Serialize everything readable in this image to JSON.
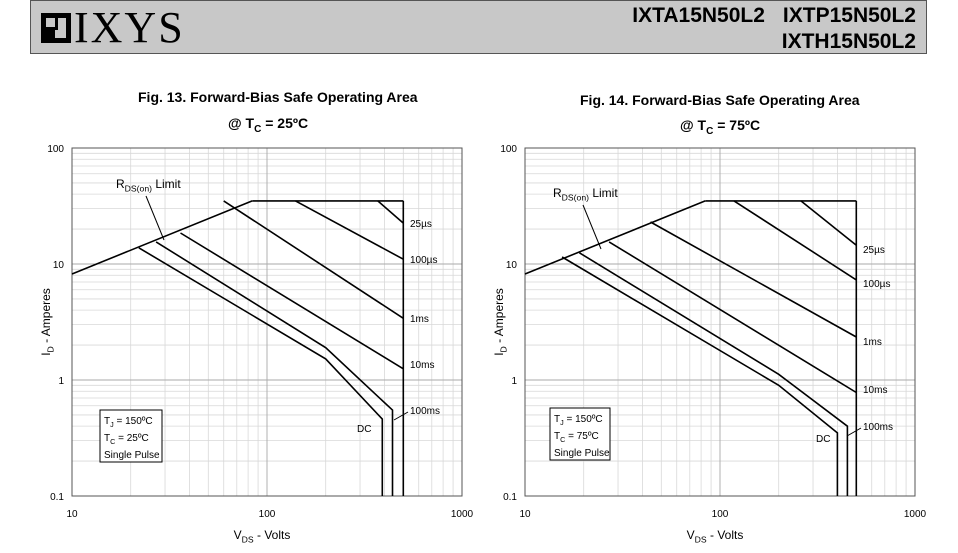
{
  "header": {
    "logo_text": "IXYS",
    "part_numbers_line1": [
      "IXTA15N50L2",
      "IXTP15N50L2"
    ],
    "part_numbers_line2": "IXTH15N50L2"
  },
  "chart_data": [
    {
      "type": "line",
      "title": "Fig. 13. Forward-Bias Safe Operating Area",
      "subtitle": "@ T",
      "subtitle_sub": "C",
      "subtitle_rest": " = 25ºC",
      "xlabel": "V",
      "xlabel_sub": "DS",
      "xlabel_rest": " - Volts",
      "ylabel": "I",
      "ylabel_sub": "D",
      "ylabel_rest": " - Amperes",
      "xscale": "log",
      "yscale": "log",
      "xlim": [
        10,
        1000
      ],
      "ylim": [
        0.1,
        100
      ],
      "xticks": [
        "10",
        "100",
        "1000"
      ],
      "yticks": [
        "0.1",
        "1",
        "10",
        "100"
      ],
      "grid": true,
      "rds_label": "R",
      "rds_sub": "DS(on)",
      "rds_rest": " Limit",
      "conditions": [
        "T",
        "T",
        "Single Pulse"
      ],
      "conditions_sub": [
        "J",
        "C",
        ""
      ],
      "conditions_rest": [
        " = 150ºC",
        " = 25ºC",
        ""
      ],
      "series": [
        {
          "name": "RDS(on) Limit",
          "x": [
            10,
            84
          ],
          "y": [
            8.2,
            35
          ]
        },
        {
          "name": "25µs",
          "x": [
            370,
            500
          ],
          "y": [
            35,
            22.5
          ]
        },
        {
          "name": "100µs",
          "x": [
            140,
            500
          ],
          "y": [
            35,
            11
          ]
        },
        {
          "name": "1ms",
          "x": [
            60,
            500
          ],
          "y": [
            35,
            3.4
          ]
        },
        {
          "name": "10ms",
          "x": [
            36,
            500
          ],
          "y": [
            18.5,
            1.25
          ]
        },
        {
          "name": "100ms",
          "x": [
            27,
            200,
            440,
            440
          ],
          "y": [
            15.5,
            1.9,
            0.55,
            0.1
          ]
        },
        {
          "name": "DC",
          "x": [
            22,
            200,
            390,
            390
          ],
          "y": [
            13.8,
            1.52,
            0.46,
            0.1
          ]
        },
        {
          "name": "Vmax",
          "x": [
            500,
            500
          ],
          "y": [
            35,
            0.1
          ]
        }
      ],
      "labels": [
        "25µs",
        "100µs",
        "1ms",
        "10ms",
        "100ms",
        "DC"
      ]
    },
    {
      "type": "line",
      "title": "Fig. 14. Forward-Bias Safe Operating Area",
      "subtitle": "@ T",
      "subtitle_sub": "C",
      "subtitle_rest": " = 75ºC",
      "xlabel": "V",
      "xlabel_sub": "DS",
      "xlabel_rest": " - Volts",
      "ylabel": "I",
      "ylabel_sub": "D",
      "ylabel_rest": " - Amperes",
      "xscale": "log",
      "yscale": "log",
      "xlim": [
        10,
        1000
      ],
      "ylim": [
        0.1,
        100
      ],
      "xticks": [
        "10",
        "100",
        "1000"
      ],
      "yticks": [
        "0.1",
        "1",
        "10",
        "100"
      ],
      "grid": true,
      "rds_label": "R",
      "rds_sub": "DS(on)",
      "rds_rest": " Limit",
      "conditions": [
        "T",
        "T",
        "Single Pulse"
      ],
      "conditions_sub": [
        "J",
        "C",
        ""
      ],
      "conditions_rest": [
        " = 150ºC",
        " = 75ºC",
        ""
      ],
      "series": [
        {
          "name": "RDS(on) Limit",
          "x": [
            10,
            84
          ],
          "y": [
            8.2,
            35
          ]
        },
        {
          "name": "25µs",
          "x": [
            260,
            500
          ],
          "y": [
            35,
            14.5
          ]
        },
        {
          "name": "100µs",
          "x": [
            118,
            500
          ],
          "y": [
            35,
            7.3
          ]
        },
        {
          "name": "1ms",
          "x": [
            44,
            500
          ],
          "y": [
            23,
            2.35
          ]
        },
        {
          "name": "10ms",
          "x": [
            27,
            500
          ],
          "y": [
            15.5,
            0.78
          ]
        },
        {
          "name": "100ms",
          "x": [
            19,
            200,
            450,
            450
          ],
          "y": [
            12.5,
            1.12,
            0.4,
            0.1
          ]
        },
        {
          "name": "DC",
          "x": [
            15.5,
            200,
            400,
            400
          ],
          "y": [
            11.5,
            0.9,
            0.35,
            0.1
          ]
        },
        {
          "name": "Vmax",
          "x": [
            500,
            500
          ],
          "y": [
            35,
            0.1
          ]
        }
      ],
      "labels": [
        "25µs",
        "100µs",
        "1ms",
        "10ms",
        "100ms",
        "DC"
      ]
    }
  ]
}
